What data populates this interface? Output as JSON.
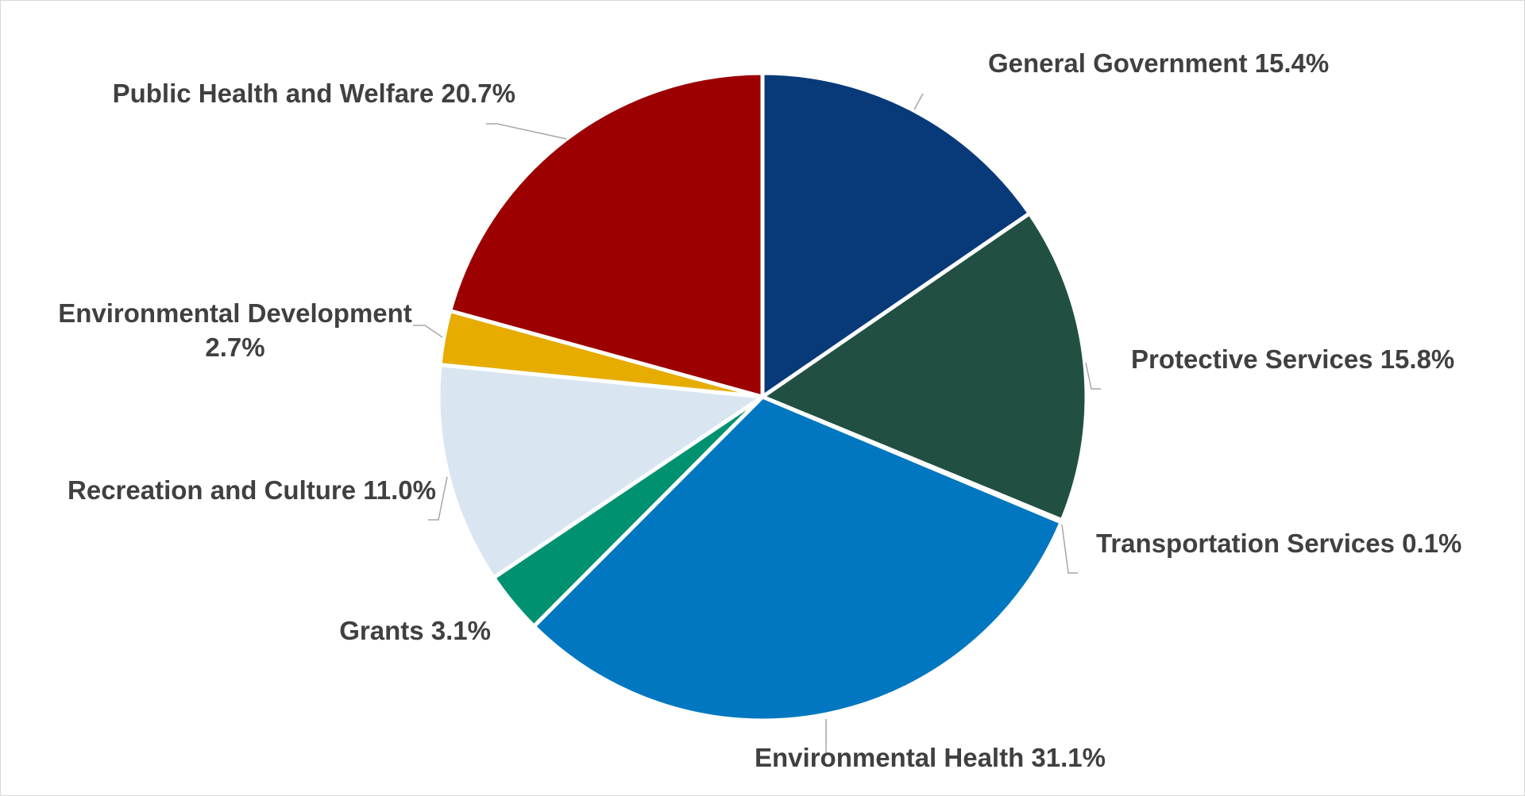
{
  "chart_data": {
    "type": "pie",
    "start": "12 o'clock, clockwise",
    "legend": "none (data labels with leader lines)",
    "slices": [
      {
        "label": "General Government",
        "value": 15.4,
        "display": "General Government 15.4%",
        "color": "#083a7a"
      },
      {
        "label": "Protective Services",
        "value": 15.8,
        "display": "Protective Services 15.8%",
        "color": "#215042"
      },
      {
        "label": "Transportation Services",
        "value": 0.1,
        "display": "Transportation Services 0.1%",
        "color": "#7f7f7f"
      },
      {
        "label": "Environmental Health",
        "value": 31.1,
        "display": "Environmental Health 31.1%",
        "color": "#0077c0"
      },
      {
        "label": "Grants",
        "value": 3.1,
        "display": "Grants 3.1%",
        "color": "#009270"
      },
      {
        "label": "Recreation and Culture",
        "value": 11.0,
        "display": "Recreation and Culture 11.0%",
        "color": "#d9e6f1"
      },
      {
        "label": "Environmental Development",
        "value": 2.7,
        "display_line1": "Environmental Development",
        "display_line2": "2.7%",
        "color": "#e6ac00"
      },
      {
        "label": "Public Health and Welfare",
        "value": 20.7,
        "display": "Public Health and Welfare 20.7%",
        "color": "#9c0000"
      }
    ]
  }
}
